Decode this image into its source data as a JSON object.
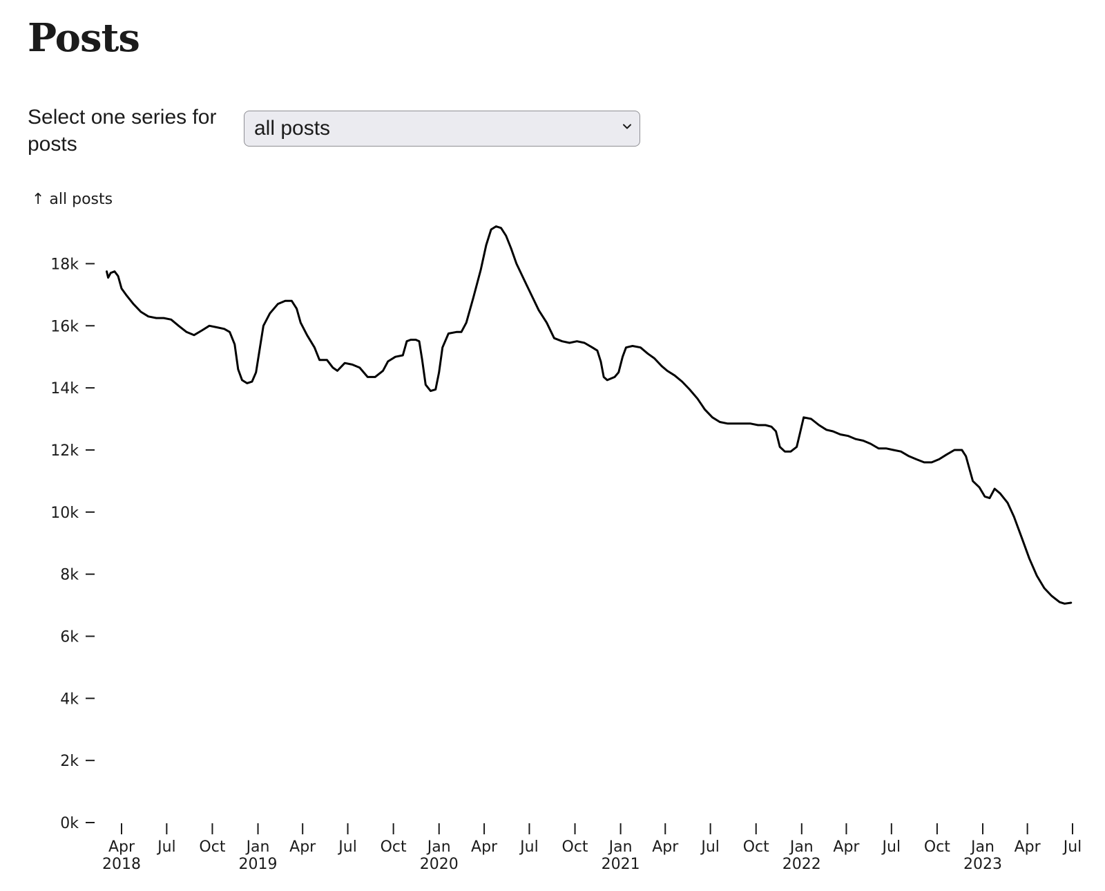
{
  "page": {
    "title": "Posts"
  },
  "control": {
    "label": "Select one series for posts",
    "selected": "all posts",
    "icon": "chevron-down-icon"
  },
  "chart_data": {
    "type": "line",
    "ylabel": "↑ all posts",
    "ylim": [
      0,
      20000
    ],
    "yticks": [
      0,
      2000,
      4000,
      6000,
      8000,
      10000,
      12000,
      14000,
      16000,
      18000
    ],
    "ytick_labels": [
      "0k",
      "2k",
      "4k",
      "6k",
      "8k",
      "10k",
      "12k",
      "14k",
      "16k",
      "18k"
    ],
    "xlim": [
      "2018-03-01",
      "2023-07-01"
    ],
    "xticks": [
      {
        "date": "2018-04-01",
        "label": "Apr",
        "year": "2018"
      },
      {
        "date": "2018-07-01",
        "label": "Jul",
        "year": ""
      },
      {
        "date": "2018-10-01",
        "label": "Oct",
        "year": ""
      },
      {
        "date": "2019-01-01",
        "label": "Jan",
        "year": "2019"
      },
      {
        "date": "2019-04-01",
        "label": "Apr",
        "year": ""
      },
      {
        "date": "2019-07-01",
        "label": "Jul",
        "year": ""
      },
      {
        "date": "2019-10-01",
        "label": "Oct",
        "year": ""
      },
      {
        "date": "2020-01-01",
        "label": "Jan",
        "year": "2020"
      },
      {
        "date": "2020-04-01",
        "label": "Apr",
        "year": ""
      },
      {
        "date": "2020-07-01",
        "label": "Jul",
        "year": ""
      },
      {
        "date": "2020-10-01",
        "label": "Oct",
        "year": ""
      },
      {
        "date": "2021-01-01",
        "label": "Jan",
        "year": "2021"
      },
      {
        "date": "2021-04-01",
        "label": "Apr",
        "year": ""
      },
      {
        "date": "2021-07-01",
        "label": "Jul",
        "year": ""
      },
      {
        "date": "2021-10-01",
        "label": "Oct",
        "year": ""
      },
      {
        "date": "2022-01-01",
        "label": "Jan",
        "year": "2022"
      },
      {
        "date": "2022-04-01",
        "label": "Apr",
        "year": ""
      },
      {
        "date": "2022-07-01",
        "label": "Jul",
        "year": ""
      },
      {
        "date": "2022-10-01",
        "label": "Oct",
        "year": ""
      },
      {
        "date": "2023-01-01",
        "label": "Jan",
        "year": "2023"
      },
      {
        "date": "2023-04-01",
        "label": "Apr",
        "year": ""
      },
      {
        "date": "2023-07-01",
        "label": "Jul",
        "year": ""
      }
    ],
    "series": [
      {
        "name": "all posts",
        "color": "#000000",
        "points": [
          [
            "2018-03-02",
            17750
          ],
          [
            "2018-03-05",
            17550
          ],
          [
            "2018-03-10",
            17700
          ],
          [
            "2018-03-18",
            17750
          ],
          [
            "2018-03-25",
            17600
          ],
          [
            "2018-04-01",
            17200
          ],
          [
            "2018-04-10",
            17000
          ],
          [
            "2018-04-25",
            16700
          ],
          [
            "2018-05-10",
            16450
          ],
          [
            "2018-05-25",
            16300
          ],
          [
            "2018-06-10",
            16250
          ],
          [
            "2018-06-25",
            16250
          ],
          [
            "2018-07-10",
            16200
          ],
          [
            "2018-07-25",
            16000
          ],
          [
            "2018-08-10",
            15800
          ],
          [
            "2018-08-25",
            15700
          ],
          [
            "2018-09-10",
            15850
          ],
          [
            "2018-09-25",
            16000
          ],
          [
            "2018-10-10",
            15950
          ],
          [
            "2018-10-25",
            15900
          ],
          [
            "2018-11-05",
            15800
          ],
          [
            "2018-11-15",
            15400
          ],
          [
            "2018-11-22",
            14600
          ],
          [
            "2018-11-30",
            14250
          ],
          [
            "2018-12-10",
            14150
          ],
          [
            "2018-12-20",
            14200
          ],
          [
            "2018-12-28",
            14500
          ],
          [
            "2019-01-05",
            15300
          ],
          [
            "2019-01-12",
            16000
          ],
          [
            "2019-01-25",
            16400
          ],
          [
            "2019-02-10",
            16700
          ],
          [
            "2019-02-25",
            16800
          ],
          [
            "2019-03-10",
            16800
          ],
          [
            "2019-03-20",
            16550
          ],
          [
            "2019-03-28",
            16100
          ],
          [
            "2019-04-10",
            15700
          ],
          [
            "2019-04-25",
            15300
          ],
          [
            "2019-05-05",
            14900
          ],
          [
            "2019-05-20",
            14900
          ],
          [
            "2019-06-01",
            14650
          ],
          [
            "2019-06-10",
            14550
          ],
          [
            "2019-06-25",
            14800
          ],
          [
            "2019-07-10",
            14750
          ],
          [
            "2019-07-25",
            14650
          ],
          [
            "2019-08-10",
            14350
          ],
          [
            "2019-08-25",
            14350
          ],
          [
            "2019-09-10",
            14550
          ],
          [
            "2019-09-20",
            14850
          ],
          [
            "2019-10-05",
            15000
          ],
          [
            "2019-10-20",
            15050
          ],
          [
            "2019-10-28",
            15500
          ],
          [
            "2019-11-05",
            15550
          ],
          [
            "2019-11-15",
            15550
          ],
          [
            "2019-11-22",
            15500
          ],
          [
            "2019-11-28",
            14900
          ],
          [
            "2019-12-05",
            14100
          ],
          [
            "2019-12-15",
            13900
          ],
          [
            "2019-12-25",
            13950
          ],
          [
            "2020-01-01",
            14500
          ],
          [
            "2020-01-08",
            15300
          ],
          [
            "2020-01-20",
            15750
          ],
          [
            "2020-02-05",
            15800
          ],
          [
            "2020-02-15",
            15800
          ],
          [
            "2020-02-25",
            16100
          ],
          [
            "2020-03-10",
            16900
          ],
          [
            "2020-03-25",
            17800
          ],
          [
            "2020-04-05",
            18600
          ],
          [
            "2020-04-15",
            19100
          ],
          [
            "2020-04-25",
            19200
          ],
          [
            "2020-05-05",
            19150
          ],
          [
            "2020-05-15",
            18900
          ],
          [
            "2020-05-25",
            18500
          ],
          [
            "2020-06-05",
            18000
          ],
          [
            "2020-06-20",
            17500
          ],
          [
            "2020-07-05",
            17000
          ],
          [
            "2020-07-20",
            16500
          ],
          [
            "2020-08-05",
            16100
          ],
          [
            "2020-08-20",
            15600
          ],
          [
            "2020-09-05",
            15500
          ],
          [
            "2020-09-20",
            15450
          ],
          [
            "2020-10-05",
            15500
          ],
          [
            "2020-10-20",
            15450
          ],
          [
            "2020-11-05",
            15300
          ],
          [
            "2020-11-15",
            15200
          ],
          [
            "2020-11-22",
            14850
          ],
          [
            "2020-11-28",
            14350
          ],
          [
            "2020-12-05",
            14250
          ],
          [
            "2020-12-20",
            14350
          ],
          [
            "2020-12-28",
            14500
          ],
          [
            "2021-01-05",
            15000
          ],
          [
            "2021-01-12",
            15300
          ],
          [
            "2021-01-25",
            15350
          ],
          [
            "2021-02-10",
            15300
          ],
          [
            "2021-02-25",
            15100
          ],
          [
            "2021-03-10",
            14950
          ],
          [
            "2021-03-25",
            14700
          ],
          [
            "2021-04-05",
            14550
          ],
          [
            "2021-04-20",
            14400
          ],
          [
            "2021-05-05",
            14200
          ],
          [
            "2021-05-20",
            13950
          ],
          [
            "2021-06-05",
            13650
          ],
          [
            "2021-06-20",
            13300
          ],
          [
            "2021-07-05",
            13050
          ],
          [
            "2021-07-20",
            12900
          ],
          [
            "2021-08-05",
            12850
          ],
          [
            "2021-08-20",
            12850
          ],
          [
            "2021-09-05",
            12850
          ],
          [
            "2021-09-20",
            12850
          ],
          [
            "2021-10-05",
            12800
          ],
          [
            "2021-10-20",
            12800
          ],
          [
            "2021-11-01",
            12750
          ],
          [
            "2021-11-10",
            12600
          ],
          [
            "2021-11-18",
            12100
          ],
          [
            "2021-11-28",
            11950
          ],
          [
            "2021-12-10",
            11950
          ],
          [
            "2021-12-22",
            12100
          ],
          [
            "2021-12-28",
            12500
          ],
          [
            "2022-01-05",
            13050
          ],
          [
            "2022-01-20",
            13000
          ],
          [
            "2022-02-05",
            12800
          ],
          [
            "2022-02-20",
            12650
          ],
          [
            "2022-03-05",
            12600
          ],
          [
            "2022-03-20",
            12500
          ],
          [
            "2022-04-05",
            12450
          ],
          [
            "2022-04-20",
            12350
          ],
          [
            "2022-05-05",
            12300
          ],
          [
            "2022-05-20",
            12200
          ],
          [
            "2022-06-05",
            12050
          ],
          [
            "2022-06-20",
            12050
          ],
          [
            "2022-07-05",
            12000
          ],
          [
            "2022-07-20",
            11950
          ],
          [
            "2022-08-05",
            11800
          ],
          [
            "2022-08-20",
            11700
          ],
          [
            "2022-09-05",
            11600
          ],
          [
            "2022-09-20",
            11600
          ],
          [
            "2022-10-05",
            11700
          ],
          [
            "2022-10-20",
            11850
          ],
          [
            "2022-11-05",
            12000
          ],
          [
            "2022-11-20",
            12000
          ],
          [
            "2022-11-28",
            11800
          ],
          [
            "2022-12-05",
            11400
          ],
          [
            "2022-12-12",
            11000
          ],
          [
            "2022-12-25",
            10800
          ],
          [
            "2023-01-05",
            10500
          ],
          [
            "2023-01-15",
            10450
          ],
          [
            "2023-01-25",
            10750
          ],
          [
            "2023-02-05",
            10600
          ],
          [
            "2023-02-20",
            10300
          ],
          [
            "2023-03-05",
            9850
          ],
          [
            "2023-03-20",
            9200
          ],
          [
            "2023-04-05",
            8500
          ],
          [
            "2023-04-20",
            7950
          ],
          [
            "2023-05-05",
            7550
          ],
          [
            "2023-05-20",
            7300
          ],
          [
            "2023-06-05",
            7100
          ],
          [
            "2023-06-15",
            7050
          ],
          [
            "2023-06-28",
            7080
          ]
        ]
      }
    ]
  }
}
